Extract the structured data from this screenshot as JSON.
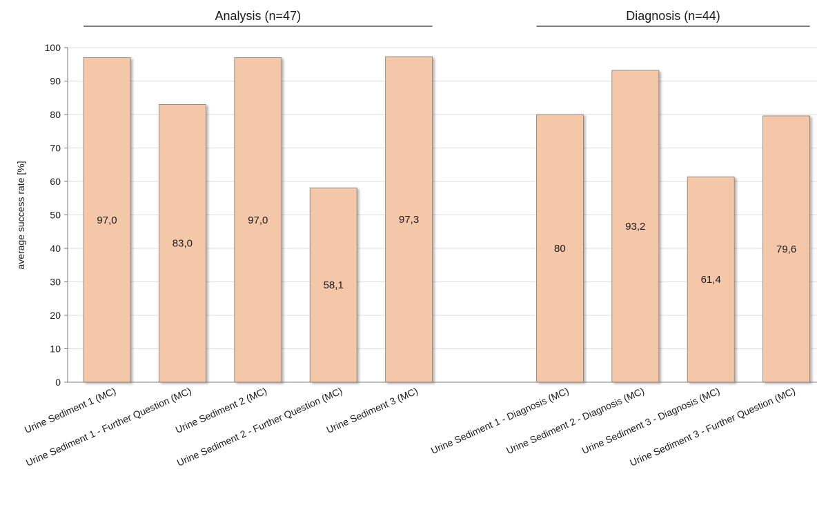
{
  "chart_data": {
    "type": "bar",
    "ylabel": "average success rate  [%]",
    "xlabel": "",
    "ylim": [
      0,
      100
    ],
    "yticks": [
      0,
      10,
      20,
      30,
      40,
      50,
      60,
      70,
      80,
      90,
      100
    ],
    "grid": true,
    "bar_color": "#f5c7a9",
    "groups": [
      {
        "label": "Analysis (n=47)",
        "first_index": 0,
        "last_index": 4
      },
      {
        "label": "Diagnosis (n=44)",
        "first_index": 6,
        "last_index": 9
      }
    ],
    "categories": [
      "Urine Sediment 1  (MC)",
      "Urine Sediment 1 - Further Question (MC)",
      "Urine Sediment 2 (MC)",
      "Urine Sediment 2 - Further Question (MC)",
      "Urine Sediment 3 (MC)",
      "",
      "Urine Sediment 1  - Diagnosis (MC)",
      "Urine Sediment 2 - Diagnosis (MC)",
      "Urine Sediment 3 - Diagnosis (MC)",
      "Urine Sediment 3 - Further Question (MC)"
    ],
    "values": [
      97.0,
      83.0,
      97.0,
      58.1,
      97.3,
      null,
      80,
      93.2,
      61.4,
      79.6
    ],
    "data_labels": [
      "97,0",
      "83,0",
      "97,0",
      "58,1",
      "97,3",
      "",
      "80",
      "93,2",
      "61,4",
      "79,6"
    ]
  }
}
